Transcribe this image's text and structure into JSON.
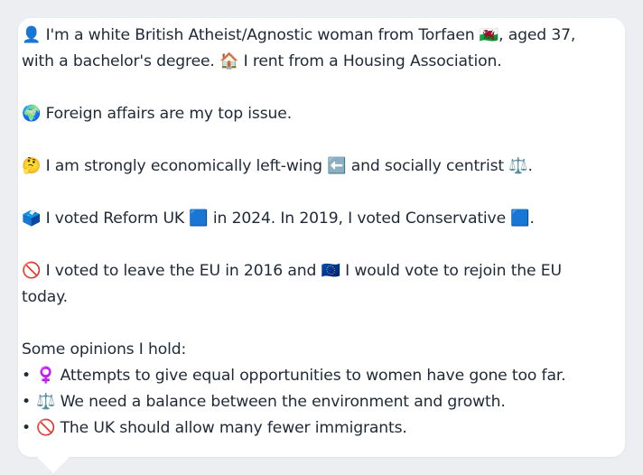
{
  "profile": {
    "intro": "👤 I'm a white British Atheist/Agnostic woman from Torfaen 🏴󠁧󠁢󠁷󠁬󠁳󠁿, aged 37, with a bachelor's degree. 🏠 I rent from a Housing Association.",
    "top_issue": "🌍 Foreign affairs are my top issue.",
    "ideology": "🤔 I am strongly economically left-wing ⬅️ and socially centrist ⚖️.",
    "voting": "🗳️ I voted Reform UK 🟦 in 2024. In 2019, I voted Conservative 🟦.",
    "eu": "🚫 I voted to leave the EU in 2016 and 🇪🇺 I would vote to rejoin the EU today.",
    "opinions_heading": "Some opinions I hold:",
    "opinions": [
      {
        "bullet": "•",
        "text": "♀️ Attempts to give equal opportunities to women have gone too far."
      },
      {
        "bullet": "•",
        "text": "⚖️ We need a balance between the environment and growth."
      },
      {
        "bullet": "•",
        "text": "🚫 The UK should allow many fewer immigrants."
      }
    ]
  }
}
